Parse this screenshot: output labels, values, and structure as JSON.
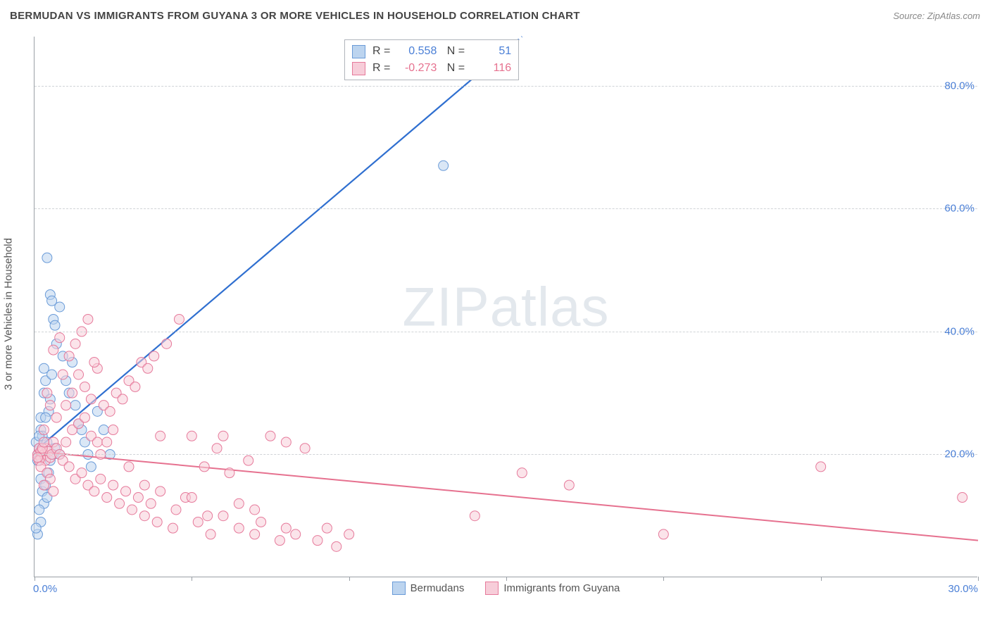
{
  "header": {
    "title": "BERMUDAN VS IMMIGRANTS FROM GUYANA 3 OR MORE VEHICLES IN HOUSEHOLD CORRELATION CHART",
    "source": "Source: ZipAtlas.com"
  },
  "chart": {
    "type": "scatter",
    "y_axis_label": "3 or more Vehicles in Household",
    "xlim": [
      0,
      30
    ],
    "ylim": [
      0,
      88
    ],
    "y_ticks": [
      20,
      40,
      60,
      80
    ],
    "y_tick_labels": [
      "20.0%",
      "40.0%",
      "60.0%",
      "80.0%"
    ],
    "x_ticks": [
      0,
      5,
      10,
      15,
      20,
      25,
      30
    ],
    "x_tick_labels": [
      "0.0%",
      "",
      "",
      "",
      "",
      "",
      "30.0%"
    ],
    "background_color": "#ffffff",
    "grid_color": "#d0d3d7",
    "axis_color": "#9aa0a6",
    "marker_radius": 7,
    "marker_opacity": 0.55,
    "series": [
      {
        "name": "Bermudans",
        "color_fill": "#bcd4ef",
        "color_stroke": "#6a9bd8",
        "trend_color": "#2f6fd0",
        "trend_width": 2.2,
        "R": "0.558",
        "N": "51",
        "trend": {
          "x1": 0,
          "y1": 20.5,
          "x2": 15.5,
          "y2": 88,
          "dash_from_x": 13.8
        },
        "points": [
          [
            0.05,
            22
          ],
          [
            0.1,
            20
          ],
          [
            0.1,
            19
          ],
          [
            0.15,
            21
          ],
          [
            0.2,
            26
          ],
          [
            0.2,
            24
          ],
          [
            0.25,
            23
          ],
          [
            0.3,
            30
          ],
          [
            0.3,
            34
          ],
          [
            0.35,
            32
          ],
          [
            0.4,
            52
          ],
          [
            0.5,
            46
          ],
          [
            0.55,
            45
          ],
          [
            0.6,
            42
          ],
          [
            0.65,
            41
          ],
          [
            0.7,
            38
          ],
          [
            0.8,
            44
          ],
          [
            0.9,
            36
          ],
          [
            1.0,
            32
          ],
          [
            1.1,
            30
          ],
          [
            1.2,
            35
          ],
          [
            1.3,
            28
          ],
          [
            1.4,
            25
          ],
          [
            1.5,
            24
          ],
          [
            1.6,
            22
          ],
          [
            1.7,
            20
          ],
          [
            1.8,
            18
          ],
          [
            0.2,
            16
          ],
          [
            0.25,
            14
          ],
          [
            0.3,
            12
          ],
          [
            0.35,
            15
          ],
          [
            0.4,
            13
          ],
          [
            0.45,
            17
          ],
          [
            0.5,
            19
          ],
          [
            0.6,
            20
          ],
          [
            0.65,
            21
          ],
          [
            0.15,
            11
          ],
          [
            0.1,
            7
          ],
          [
            0.2,
            9
          ],
          [
            0.05,
            8
          ],
          [
            0.45,
            27
          ],
          [
            0.5,
            29
          ],
          [
            0.55,
            33
          ],
          [
            0.4,
            22
          ],
          [
            0.35,
            26
          ],
          [
            2.0,
            27
          ],
          [
            2.2,
            24
          ],
          [
            2.4,
            20
          ],
          [
            0.8,
            20
          ],
          [
            0.15,
            23
          ],
          [
            13.0,
            67
          ]
        ]
      },
      {
        "name": "Immigrants from Guyana",
        "color_fill": "#f7cdd9",
        "color_stroke": "#e67a9b",
        "trend_color": "#e6718f",
        "trend_width": 2,
        "R": "-0.273",
        "N": "116",
        "trend": {
          "x1": 0,
          "y1": 20.5,
          "x2": 30,
          "y2": 6
        },
        "points": [
          [
            0.1,
            20
          ],
          [
            0.15,
            21
          ],
          [
            0.2,
            19.5
          ],
          [
            0.25,
            20.5
          ],
          [
            0.3,
            20
          ],
          [
            0.35,
            19
          ],
          [
            0.4,
            21
          ],
          [
            0.45,
            20.5
          ],
          [
            0.5,
            19.5
          ],
          [
            0.55,
            20
          ],
          [
            0.6,
            22
          ],
          [
            0.7,
            21
          ],
          [
            0.8,
            20
          ],
          [
            0.9,
            19
          ],
          [
            1.0,
            22
          ],
          [
            1.1,
            18
          ],
          [
            1.2,
            24
          ],
          [
            1.3,
            16
          ],
          [
            1.4,
            25
          ],
          [
            1.5,
            17
          ],
          [
            1.6,
            26
          ],
          [
            1.7,
            15
          ],
          [
            1.8,
            23
          ],
          [
            1.9,
            14
          ],
          [
            2.0,
            22
          ],
          [
            2.1,
            16
          ],
          [
            2.2,
            28
          ],
          [
            2.3,
            13
          ],
          [
            2.4,
            27
          ],
          [
            2.5,
            15
          ],
          [
            2.6,
            30
          ],
          [
            2.7,
            12
          ],
          [
            2.8,
            29
          ],
          [
            2.9,
            14
          ],
          [
            3.0,
            32
          ],
          [
            3.1,
            11
          ],
          [
            3.2,
            31
          ],
          [
            3.3,
            13
          ],
          [
            3.4,
            35
          ],
          [
            3.5,
            10
          ],
          [
            3.6,
            34
          ],
          [
            3.7,
            12
          ],
          [
            3.8,
            36
          ],
          [
            3.9,
            9
          ],
          [
            4.0,
            14
          ],
          [
            4.2,
            38
          ],
          [
            4.4,
            8
          ],
          [
            4.6,
            42
          ],
          [
            4.8,
            13
          ],
          [
            5.0,
            23
          ],
          [
            5.2,
            9
          ],
          [
            5.4,
            18
          ],
          [
            5.6,
            7
          ],
          [
            5.8,
            21
          ],
          [
            6.0,
            10
          ],
          [
            6.2,
            17
          ],
          [
            6.5,
            8
          ],
          [
            6.8,
            19
          ],
          [
            7.0,
            7
          ],
          [
            7.2,
            9
          ],
          [
            7.5,
            23
          ],
          [
            7.8,
            6
          ],
          [
            8.0,
            8
          ],
          [
            8.3,
            7
          ],
          [
            8.6,
            21
          ],
          [
            9.0,
            6
          ],
          [
            9.3,
            8
          ],
          [
            9.6,
            5
          ],
          [
            10.0,
            7
          ],
          [
            1.0,
            28
          ],
          [
            1.2,
            30
          ],
          [
            1.4,
            33
          ],
          [
            1.6,
            31
          ],
          [
            1.8,
            29
          ],
          [
            2.0,
            34
          ],
          [
            1.1,
            36
          ],
          [
            1.3,
            38
          ],
          [
            1.5,
            40
          ],
          [
            1.7,
            42
          ],
          [
            0.8,
            39
          ],
          [
            0.6,
            37
          ],
          [
            0.9,
            33
          ],
          [
            0.4,
            30
          ],
          [
            0.5,
            28
          ],
          [
            0.7,
            26
          ],
          [
            0.3,
            24
          ],
          [
            1.9,
            35
          ],
          [
            2.1,
            20
          ],
          [
            2.3,
            22
          ],
          [
            2.5,
            24
          ],
          [
            3.0,
            18
          ],
          [
            3.5,
            15
          ],
          [
            4.0,
            23
          ],
          [
            4.5,
            11
          ],
          [
            5.0,
            13
          ],
          [
            5.5,
            10
          ],
          [
            6.0,
            23
          ],
          [
            6.5,
            12
          ],
          [
            7.0,
            11
          ],
          [
            8.0,
            22
          ],
          [
            14.0,
            10
          ],
          [
            15.5,
            17
          ],
          [
            17.0,
            15
          ],
          [
            20.0,
            7
          ],
          [
            25.0,
            18
          ],
          [
            29.5,
            13
          ],
          [
            0.15,
            19
          ],
          [
            0.2,
            20.5
          ],
          [
            0.25,
            21
          ],
          [
            0.1,
            19.5
          ],
          [
            0.3,
            22
          ],
          [
            0.2,
            18
          ],
          [
            0.4,
            17
          ],
          [
            0.5,
            16
          ],
          [
            0.3,
            15
          ],
          [
            0.6,
            14
          ]
        ]
      }
    ],
    "watermark": "ZIPatlas",
    "legend_labels": [
      "Bermudans",
      "Immigrants from Guyana"
    ]
  }
}
